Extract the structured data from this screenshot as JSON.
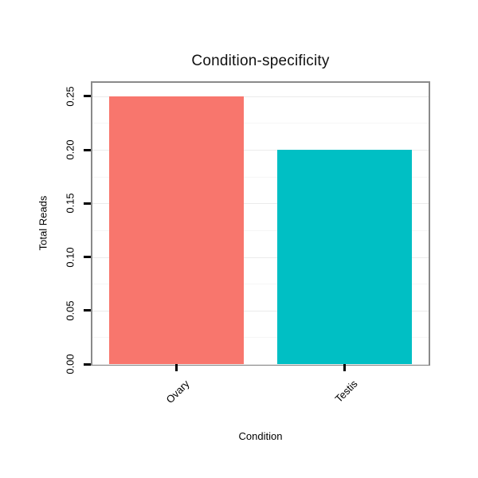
{
  "chart_data": {
    "type": "bar",
    "title": "Condition-specificity",
    "xlabel": "Condition",
    "ylabel": "Total Reads",
    "categories": [
      "Ovary",
      "Testis"
    ],
    "values": [
      0.25,
      0.2
    ],
    "bar_colors": [
      "#F8766D",
      "#00BFC4"
    ],
    "yticks": [
      0.0,
      0.05,
      0.1,
      0.15,
      0.2,
      0.25
    ],
    "ytick_labels": [
      "0.00",
      "0.05",
      "0.10",
      "0.15",
      "0.20",
      "0.25"
    ],
    "ylim": [
      0,
      0.2625
    ],
    "grid": true,
    "legend": "none",
    "panel_border_color": "#8a8a8a",
    "tick_color": "#000000"
  }
}
